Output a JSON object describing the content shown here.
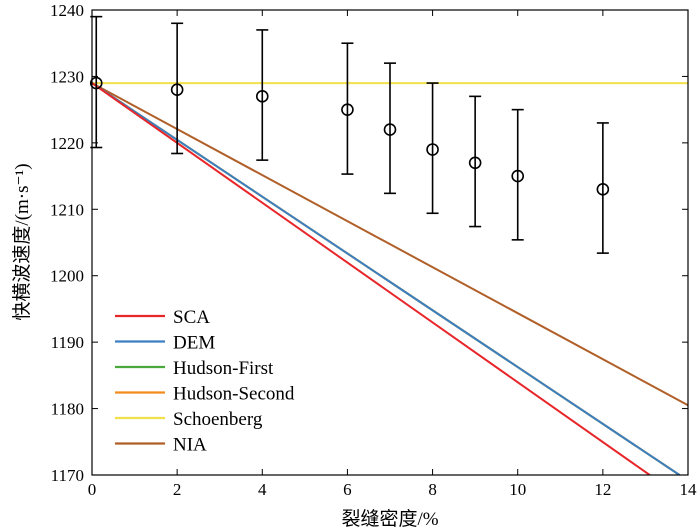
{
  "chart_data": {
    "type": "line",
    "title": "",
    "xlabel": "裂缝密度/%",
    "ylabel": "快横波速度/(m·s⁻¹)",
    "xlim": [
      0,
      14
    ],
    "ylim": [
      1170,
      1240
    ],
    "xticks": [
      0,
      2,
      4,
      6,
      8,
      10,
      12,
      14
    ],
    "yticks": [
      1170,
      1180,
      1190,
      1200,
      1210,
      1220,
      1230,
      1240
    ],
    "grid": false,
    "legend_position": "bottom-left",
    "series": [
      {
        "name": "SCA",
        "color": "#e8262a",
        "x": [
          0,
          13.1
        ],
        "y": [
          1229,
          1170
        ]
      },
      {
        "name": "DEM",
        "color": "#3b7fc0",
        "x": [
          0,
          13.8
        ],
        "y": [
          1229,
          1170
        ]
      },
      {
        "name": "Hudson-First",
        "color": "#4aa83c",
        "x": [
          0,
          13.8
        ],
        "y": [
          1229,
          1170
        ]
      },
      {
        "name": "Hudson-Second",
        "color": "#f28c1b",
        "x": [
          0,
          13.8
        ],
        "y": [
          1229,
          1170
        ]
      },
      {
        "name": "Schoenberg",
        "color": "#f0e04a",
        "x": [
          0,
          14
        ],
        "y": [
          1229,
          1229
        ]
      },
      {
        "name": "NIA",
        "color": "#b05f28",
        "x": [
          0,
          14
        ],
        "y": [
          1229,
          1180.5
        ]
      }
    ],
    "measured": {
      "x": [
        0.1,
        2,
        4,
        6,
        7,
        8,
        9,
        10,
        12
      ],
      "y": [
        1229,
        1228,
        1227,
        1225,
        1222,
        1219,
        1217,
        1215,
        1213
      ],
      "err_low": [
        1219.3,
        1218.4,
        1217.4,
        1215.3,
        1212.4,
        1209.4,
        1207.4,
        1205.4,
        1203.4
      ],
      "err_high": [
        1239,
        1238,
        1237,
        1235,
        1232,
        1229,
        1227,
        1225,
        1223
      ]
    }
  }
}
